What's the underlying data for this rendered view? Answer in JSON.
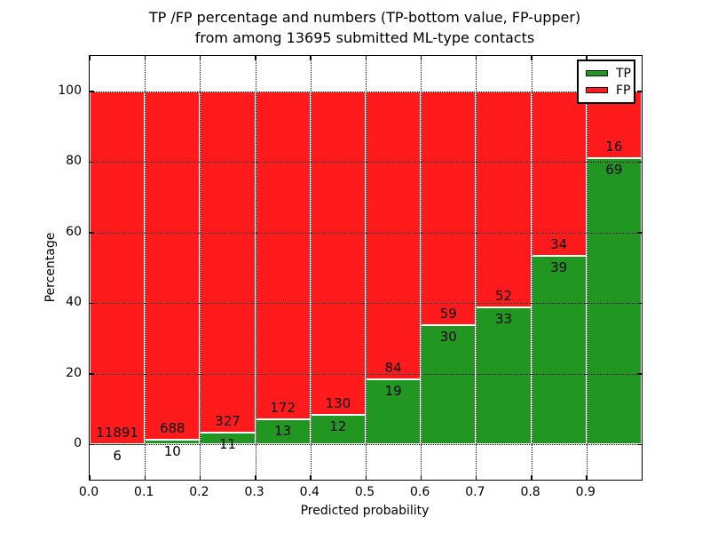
{
  "title": {
    "line1": "TP /FP percentage and numbers (TP-bottom value, FP-upper)",
    "line2": "from among 13695 submitted ML-type contacts"
  },
  "chart_data": {
    "type": "bar",
    "subtype": "stacked-percentage-histogram",
    "title": "TP /FP percentage and numbers (TP-bottom value, FP-upper) from among 13695 submitted ML-type contacts",
    "xlabel": "Predicted probability",
    "ylabel": "Percentage",
    "total_contacts": 13695,
    "bin_width": 0.1,
    "bin_starts": [
      0.0,
      0.1,
      0.2,
      0.3,
      0.4,
      0.5,
      0.6,
      0.7,
      0.8,
      0.9
    ],
    "xtick_labels": [
      "0.0",
      "0.1",
      "0.2",
      "0.3",
      "0.4",
      "0.5",
      "0.6",
      "0.7",
      "0.8",
      "0.9"
    ],
    "ytick_values": [
      0,
      20,
      40,
      60,
      80,
      100
    ],
    "ytick_labels": [
      "0",
      "20",
      "40",
      "60",
      "80",
      "100"
    ],
    "xlim": [
      0.0,
      1.0
    ],
    "ylim": [
      -10,
      110
    ],
    "grid": "dotted",
    "legend": {
      "position": "upper-right",
      "entries": [
        {
          "label": "TP",
          "color": "#219621"
        },
        {
          "label": "FP",
          "color": "#ff1b1b"
        }
      ]
    },
    "series": [
      {
        "name": "TP",
        "stack_position": "bottom",
        "color": "#219621",
        "counts": [
          6,
          10,
          11,
          13,
          12,
          19,
          30,
          33,
          39,
          69
        ],
        "percent": [
          0.05,
          1.43,
          3.25,
          7.03,
          8.45,
          18.45,
          33.71,
          38.82,
          53.42,
          81.18
        ]
      },
      {
        "name": "FP",
        "stack_position": "top",
        "color": "#ff1b1b",
        "counts": [
          11891,
          688,
          327,
          172,
          130,
          84,
          59,
          52,
          34,
          16
        ],
        "percent": [
          99.95,
          98.57,
          96.75,
          92.97,
          91.55,
          81.55,
          66.29,
          61.18,
          46.58,
          18.82
        ]
      }
    ]
  }
}
